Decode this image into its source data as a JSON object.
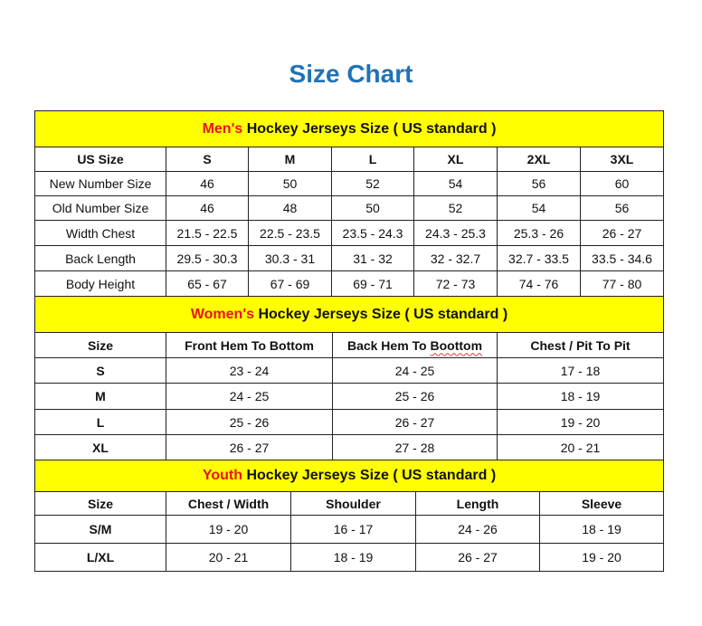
{
  "title": "Size Chart",
  "colors": {
    "title": "#1f73b7",
    "header_bg": "#ffff00",
    "accent": "#e8141b"
  },
  "sections": [
    {
      "id": "men",
      "accent": "Men's",
      "heading": "Hockey Jerseys Size ( US standard )",
      "columns": [
        "US Size",
        "S",
        "M",
        "L",
        "XL",
        "2XL",
        "3XL"
      ],
      "rows": [
        [
          "New Number Size",
          "46",
          "50",
          "52",
          "54",
          "56",
          "60"
        ],
        [
          "Old Number Size",
          "46",
          "48",
          "50",
          "52",
          "54",
          "56"
        ],
        [
          "Width Chest",
          "21.5 - 22.5",
          "22.5 - 23.5",
          "23.5 - 24.3",
          "24.3 - 25.3",
          "25.3 - 26",
          "26 - 27"
        ],
        [
          "Back Length",
          "29.5 - 30.3",
          "30.3 - 31",
          "31 - 32",
          "32 - 32.7",
          "32.7 - 33.5",
          "33.5 - 34.6"
        ],
        [
          "Body Height",
          "65 - 67",
          "67 - 69",
          "69 - 71",
          "72 - 73",
          "74 - 76",
          "77 - 80"
        ]
      ]
    },
    {
      "id": "women",
      "accent": "Women's",
      "heading": "Hockey Jerseys Size ( US standard )",
      "columns": [
        "Size",
        "Front Hem To Bottom",
        "Back Hem To Boottom",
        "Chest / Pit To Pit"
      ],
      "rows": [
        [
          "S",
          "23 - 24",
          "24 - 25",
          "17 - 18"
        ],
        [
          "M",
          "24 - 25",
          "25 - 26",
          "18 - 19"
        ],
        [
          "L",
          "25 - 26",
          "26 - 27",
          "19 - 20"
        ],
        [
          "XL",
          "26 - 27",
          "27 - 28",
          "20 - 21"
        ]
      ]
    },
    {
      "id": "youth",
      "accent": "Youth",
      "heading": "Hockey Jerseys Size ( US standard )",
      "columns": [
        "Size",
        "Chest / Width",
        "Shoulder",
        "Length",
        "Sleeve"
      ],
      "rows": [
        [
          "S/M",
          "19 - 20",
          "16 - 17",
          "24 - 26",
          "18 - 19"
        ],
        [
          "L/XL",
          "20 - 21",
          "18 - 19",
          "26 - 27",
          "19 - 20"
        ]
      ]
    }
  ]
}
